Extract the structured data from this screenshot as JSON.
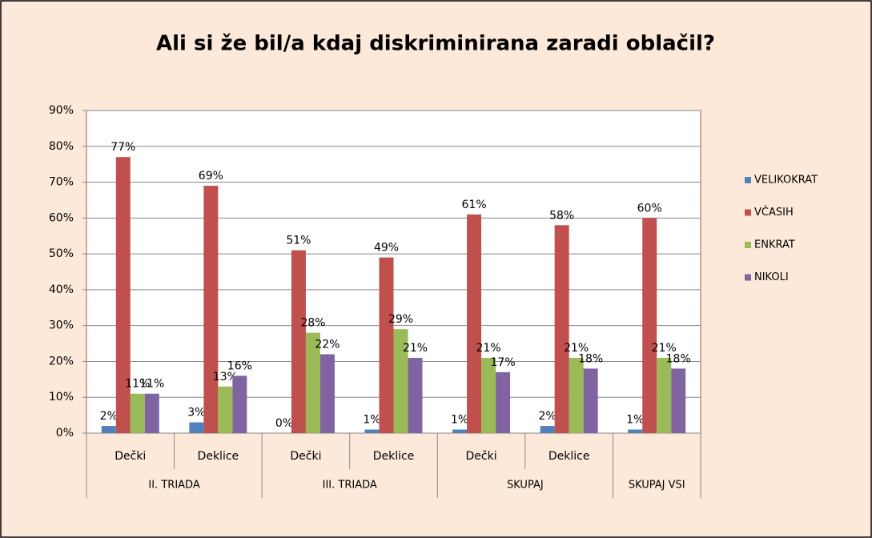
{
  "chart_data": {
    "type": "bar",
    "title": "Ali si že bil/a kdaj diskriminirana zaradi oblačil?",
    "categories": [
      "Dečki",
      "Deklice",
      "Dečki",
      "Deklice",
      "Dečki",
      "Deklice",
      null
    ],
    "groups": [
      "II. TRIADA",
      "II. TRIADA",
      "III. TRIADA",
      "III. TRIADA",
      "SKUPAJ",
      "SKUPAJ",
      "SKUPAJ VSI"
    ],
    "series": [
      {
        "name": "VELIKOKRAT",
        "color": "#4f81bd",
        "values": [
          2,
          3,
          0,
          1,
          1,
          2,
          1
        ],
        "value_labels": [
          "2%",
          "3%",
          "0%",
          "1%",
          "1%",
          "2%",
          "1%"
        ]
      },
      {
        "name": "VČASIH",
        "color": "#c0504d",
        "values": [
          77,
          69,
          51,
          49,
          61,
          58,
          60
        ],
        "value_labels": [
          "77%",
          "69%",
          "51%",
          "49%",
          "61%",
          "58%",
          "60%"
        ]
      },
      {
        "name": "ENKRAT",
        "color": "#9bbb59",
        "values": [
          11,
          13,
          28,
          29,
          21,
          21,
          21
        ],
        "value_labels": [
          "11%",
          "13%",
          "28%",
          "29%",
          "21%",
          "21%",
          "21%"
        ]
      },
      {
        "name": "NIKOLI",
        "color": "#8064a2",
        "values": [
          11,
          16,
          22,
          21,
          17,
          18,
          18
        ],
        "value_labels": [
          "11%",
          "16%",
          "22%",
          "21%",
          "17%",
          "18%",
          "18%"
        ]
      }
    ],
    "ylim": [
      0,
      90
    ],
    "yticks": [
      {
        "value": 0,
        "label": "0%"
      },
      {
        "value": 10,
        "label": "10%"
      },
      {
        "value": 20,
        "label": "20%"
      },
      {
        "value": 30,
        "label": "30%"
      },
      {
        "value": 40,
        "label": "40%"
      },
      {
        "value": 50,
        "label": "50%"
      },
      {
        "value": 60,
        "label": "60%"
      },
      {
        "value": 70,
        "label": "70%"
      },
      {
        "value": 80,
        "label": "80%"
      },
      {
        "value": 90,
        "label": "90%"
      }
    ],
    "grid": true,
    "legend": "right"
  }
}
